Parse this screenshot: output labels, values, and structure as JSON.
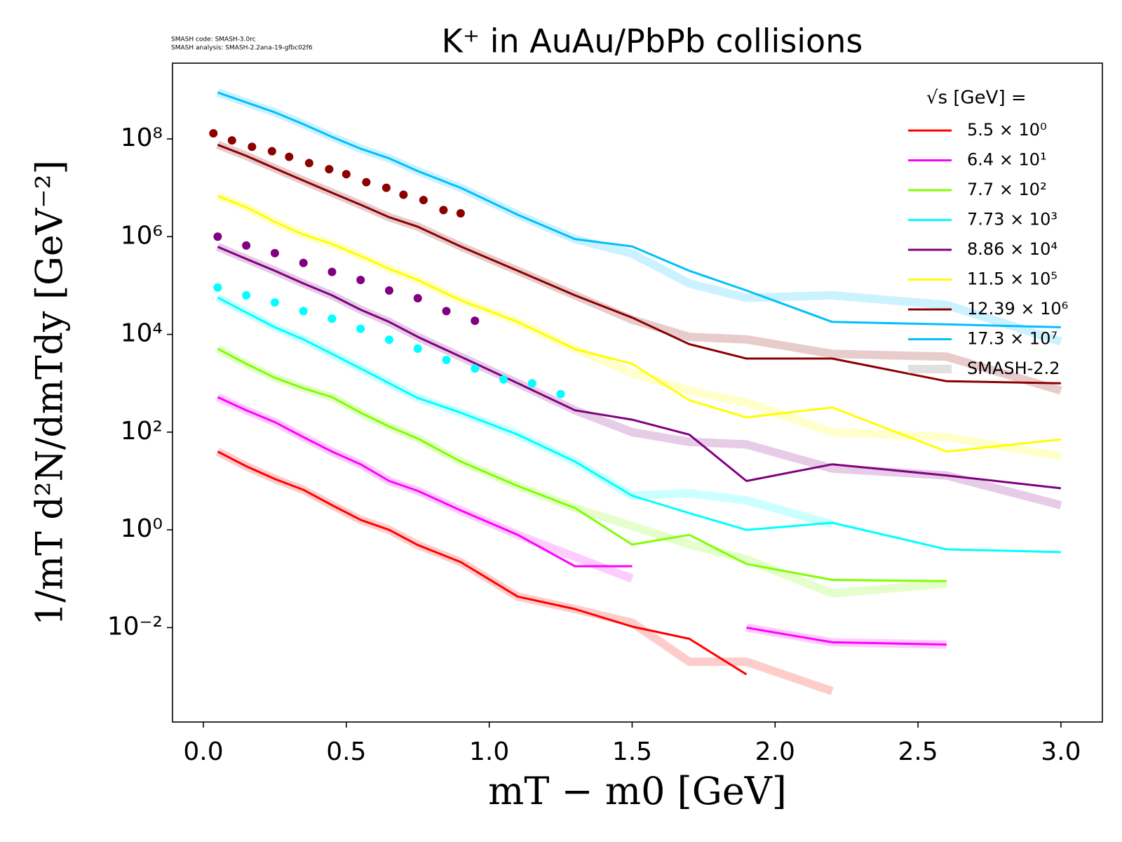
{
  "chart_data": {
    "type": "line",
    "title": "K⁺ in AuAu/PbPb collisions",
    "notes": [
      "SMASH code:      SMASH-3.0rc",
      "SMASH analysis: SMASH-2.2ana-19-gfbc02f6"
    ],
    "x_label": "mT − m0 [GeV]",
    "y_label": "1/mT d²N/dmTdy [GeV⁻²]",
    "yscale": "log",
    "xlim": [
      -0.108,
      3.145
    ],
    "ylim": [
      0.000117,
      3550000000
    ],
    "xticks": [
      {
        "value": 0,
        "label": "0.0"
      },
      0.5,
      {
        "value": 1,
        "label": "1.0"
      },
      1.5,
      {
        "value": 2,
        "label": "2.0"
      },
      2.5,
      {
        "value": 3,
        "label": "3.0"
      }
    ],
    "yticks": [
      {
        "value": 0.01,
        "label": "10⁻²"
      },
      {
        "value": 1,
        "label": "10⁰"
      },
      {
        "value": 100,
        "label": "10²"
      },
      {
        "value": 10000,
        "label": "10⁴"
      },
      {
        "value": 1000000,
        "label": "10⁶"
      },
      {
        "value": 100000000,
        "label": "10⁸"
      }
    ],
    "legend_title": "√s  [GeV] =",
    "legend": "upper right",
    "smash": {
      "name": "SMASH-2.2",
      "color": "#d3d3d3"
    },
    "x": [
      0.05,
      0.15,
      0.25,
      0.35,
      0.45,
      0.55,
      0.65,
      0.75,
      0.9,
      1.1,
      1.3,
      1.5,
      1.7,
      1.9,
      2.2,
      2.6,
      3.0
    ],
    "series": [
      {
        "name": "5.5 × 10⁰",
        "color": "#ff0000",
        "values": [
          40,
          20,
          11,
          6.6,
          3.2,
          1.6,
          1,
          0.49,
          0.22,
          0.043,
          0.024,
          0.0105,
          0.0059,
          0.0011,
          null,
          null,
          null
        ],
        "smash_values": [
          40,
          20,
          11,
          6.6,
          3.2,
          1.6,
          1,
          0.49,
          0.22,
          0.043,
          0.024,
          0.0126,
          0.002,
          0.002,
          0.0005,
          null,
          null
        ]
      },
      {
        "name": "6.4 × 10¹",
        "color": "#ff00ff",
        "values": [
          520,
          280,
          160,
          79,
          40,
          22,
          10,
          6.3,
          2.5,
          0.79,
          0.18,
          0.18,
          null,
          0.01,
          0.005,
          0.0045,
          null
        ],
        "smash_values": [
          520,
          280,
          160,
          79,
          40,
          22,
          10,
          6.3,
          2.5,
          0.79,
          0.28,
          0.1,
          null,
          0.01,
          0.005,
          0.0045,
          null
        ]
      },
      {
        "name": "7.7 × 10²",
        "color": "#7fff00",
        "values": [
          5100,
          2500,
          1300,
          790,
          520,
          250,
          130,
          74,
          25,
          7.9,
          2.8,
          0.5,
          0.79,
          0.2,
          0.095,
          0.089,
          null
        ],
        "smash_values": [
          5100,
          2500,
          1300,
          790,
          520,
          250,
          130,
          74,
          25,
          7.9,
          2.8,
          1.2,
          0.5,
          0.25,
          0.05,
          0.08,
          null
        ]
      },
      {
        "name": "7.73 × 10³",
        "color": "#00ffff",
        "values": [
          57000,
          28000,
          14000,
          7900,
          4000,
          2000,
          1000,
          500,
          250,
          89,
          25,
          5,
          2.2,
          1,
          1.4,
          0.4,
          0.35
        ],
        "smash_values": [
          57000,
          28000,
          14000,
          7900,
          4000,
          2000,
          1000,
          500,
          250,
          89,
          25,
          5,
          5.6,
          4,
          1.3,
          null,
          null
        ],
        "points_x": [
          0.05,
          0.15,
          0.25,
          0.35,
          0.45,
          0.55,
          0.65,
          0.75,
          0.85,
          0.95,
          1.05,
          1.15,
          1.25
        ],
        "points": [
          91000,
          63000,
          45000,
          30000,
          21000,
          13000,
          7800,
          5100,
          3000,
          2000,
          1200,
          1000,
          600
        ]
      },
      {
        "name": "8.86 × 10⁴",
        "color": "#800080",
        "values": [
          620000,
          350000,
          200000,
          110000,
          63000,
          32000,
          18000,
          8900,
          3500,
          1000,
          280,
          180,
          89,
          10,
          22,
          13,
          7.1
        ],
        "smash_values": [
          620000,
          350000,
          200000,
          110000,
          63000,
          32000,
          18000,
          8900,
          3500,
          1000,
          280,
          100,
          63,
          56,
          18,
          13,
          3.2
        ],
        "points_x": [
          0.05,
          0.15,
          0.25,
          0.35,
          0.45,
          0.55,
          0.65,
          0.75,
          0.85,
          0.95
        ],
        "points": [
          1000000,
          660000,
          460000,
          290000,
          190000,
          130000,
          79000,
          55000,
          30000,
          19000
        ]
      },
      {
        "name": "11.5 × 10⁵",
        "color": "#ffff00",
        "values": [
          6800000,
          4000000,
          2000000,
          1100000,
          710000,
          400000,
          220000,
          130000,
          50000,
          18000,
          5000,
          2500,
          450,
          200,
          320,
          40,
          71
        ],
        "smash_values": [
          6800000,
          4000000,
          2000000,
          1100000,
          710000,
          400000,
          220000,
          130000,
          50000,
          18000,
          5000,
          1600,
          710,
          400,
          100,
          79,
          32
        ]
      },
      {
        "name": "12.39 × 10⁶",
        "color": "#8b0000",
        "values": [
          76000000,
          45000000,
          25000000,
          14000000,
          7900000,
          4500000,
          2500000,
          1600000,
          630000,
          200000,
          63000,
          22000,
          6300,
          3200,
          3200,
          1100,
          1000
        ],
        "smash_values": [
          76000000,
          45000000,
          25000000,
          14000000,
          7900000,
          4500000,
          2500000,
          1600000,
          630000,
          200000,
          63000,
          20000,
          8900,
          7900,
          4000,
          3500,
          710
        ],
        "points_x": [
          0.035,
          0.1,
          0.17,
          0.24,
          0.3,
          0.37,
          0.44,
          0.5,
          0.57,
          0.64,
          0.7,
          0.77,
          0.84,
          0.9
        ],
        "points": [
          130000000,
          93000000,
          69000000,
          56000000,
          43000000,
          32000000,
          24000000,
          19000000,
          13000000,
          10000000,
          7200000,
          5600000,
          3500000,
          3000000
        ]
      },
      {
        "name": "17.3 × 10⁷",
        "color": "#00bfff",
        "values": [
          890000000,
          560000000,
          350000000,
          200000000,
          110000000,
          63000000,
          40000000,
          22000000,
          10000000,
          2800000,
          890000,
          630000,
          200000,
          79000,
          18000,
          16000,
          14000
        ],
        "smash_values": [
          890000000,
          560000000,
          350000000,
          200000000,
          110000000,
          63000000,
          40000000,
          22000000,
          10000000,
          2800000,
          890000,
          450000,
          110000,
          56000,
          63000,
          40000,
          7100
        ]
      }
    ]
  }
}
